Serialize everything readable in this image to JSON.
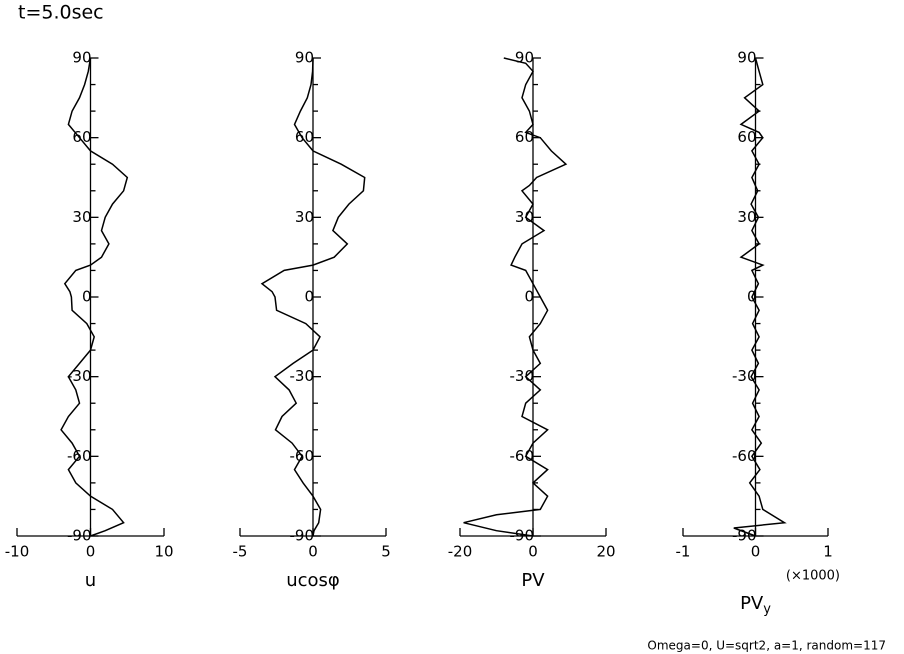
{
  "title": "t=5.0sec",
  "footer": "Omega=0, U=sqrt2, a=1, random=117",
  "chart_data": [
    {
      "type": "line",
      "xlabel": "u",
      "xlim": [
        -10,
        10
      ],
      "xticks": [
        -10,
        0,
        10
      ],
      "ylim": [
        -90,
        90
      ],
      "yticks": [
        90,
        60,
        30,
        0,
        -30,
        -60,
        -90
      ],
      "yminorticks": [
        80,
        70,
        50,
        40,
        20,
        10,
        -10,
        -20,
        -40,
        -50,
        -70,
        -80
      ],
      "color": "#000000",
      "y": [
        90,
        85,
        80,
        75,
        70,
        65,
        60,
        55,
        50,
        45,
        40,
        35,
        30,
        25,
        20,
        15,
        12,
        10,
        5,
        2,
        0,
        -5,
        -10,
        -15,
        -20,
        -25,
        -30,
        -35,
        -40,
        -45,
        -50,
        -55,
        -60,
        -65,
        -70,
        -75,
        -80,
        -85,
        -88,
        -90
      ],
      "values": [
        0,
        -0.3,
        -0.8,
        -1.5,
        -2.5,
        -3,
        -1.5,
        0,
        3,
        5,
        4.5,
        3,
        2,
        1.5,
        2.5,
        1.5,
        0,
        -2,
        -3.5,
        -2.8,
        -2.6,
        -2.5,
        -0.5,
        0.5,
        0,
        -1.5,
        -3,
        -2,
        -1.5,
        -3,
        -4,
        -2.5,
        -1.5,
        -3,
        -2,
        0,
        3,
        4.5,
        2,
        0
      ]
    },
    {
      "type": "line",
      "xlabel": "ucosφ",
      "xlim": [
        -5,
        5
      ],
      "xticks": [
        -5,
        0,
        5
      ],
      "ylim": [
        -90,
        90
      ],
      "yticks": [
        90,
        60,
        30,
        0,
        -30,
        -60,
        -90
      ],
      "yminorticks": [
        80,
        70,
        50,
        40,
        20,
        10,
        -10,
        -20,
        -40,
        -50,
        -70,
        -80
      ],
      "color": "#000000",
      "y": [
        90,
        85,
        80,
        75,
        70,
        65,
        60,
        55,
        50,
        45,
        40,
        35,
        30,
        25,
        20,
        15,
        12,
        10,
        5,
        2,
        0,
        -5,
        -10,
        -15,
        -20,
        -25,
        -30,
        -35,
        -40,
        -45,
        -50,
        -55,
        -60,
        -65,
        -70,
        -75,
        -80,
        -85,
        -88,
        -90
      ],
      "values": [
        0,
        -0.03,
        -0.14,
        -0.39,
        -0.86,
        -1.27,
        -0.75,
        0,
        1.93,
        3.54,
        3.45,
        2.46,
        1.73,
        1.36,
        2.35,
        1.45,
        0,
        -1.97,
        -3.49,
        -2.8,
        -2.6,
        -2.49,
        -0.49,
        0.48,
        0,
        -1.36,
        -2.6,
        -1.64,
        -1.15,
        -2.12,
        -2.57,
        -1.43,
        -0.75,
        -1.27,
        -0.68,
        0,
        0.52,
        0.39,
        0.07,
        0
      ]
    },
    {
      "type": "line",
      "xlabel": "PV",
      "xlim": [
        -20,
        20
      ],
      "xticks": [
        -20,
        0,
        20
      ],
      "ylim": [
        -90,
        90
      ],
      "yticks": [
        90,
        60,
        30,
        0,
        -30,
        -60,
        -90
      ],
      "yminorticks": [
        80,
        70,
        50,
        40,
        20,
        10,
        -10,
        -20,
        -40,
        -50,
        -70,
        -80
      ],
      "color": "#000000",
      "y": [
        90,
        88,
        85,
        80,
        75,
        70,
        65,
        62,
        60,
        55,
        50,
        45,
        42,
        40,
        35,
        30,
        25,
        20,
        15,
        12,
        10,
        5,
        0,
        -5,
        -10,
        -15,
        -20,
        -25,
        -30,
        -35,
        -40,
        -45,
        -50,
        -55,
        -60,
        -65,
        -70,
        -75,
        -80,
        -82,
        -85,
        -88,
        -90
      ],
      "values": [
        -8,
        -2,
        0,
        -2,
        -3,
        -1,
        0,
        -2,
        2,
        5,
        9,
        1,
        -1,
        -3,
        0,
        -2,
        3,
        -3,
        -5,
        -6,
        -2,
        0,
        2,
        4,
        2,
        -1,
        0,
        2,
        -2,
        2,
        -2,
        -3,
        4,
        0,
        -2,
        4,
        0,
        4,
        2,
        -10,
        -19,
        -10,
        0
      ]
    },
    {
      "type": "line",
      "xlabel": "PV",
      "xlabel_subscript": "y",
      "note": "(×1000)",
      "xlim": [
        -1,
        1
      ],
      "xticks": [
        -1,
        0,
        1
      ],
      "ylim": [
        -90,
        90
      ],
      "yticks": [
        90,
        60,
        30,
        0,
        -30,
        -60,
        -90
      ],
      "yminorticks": [
        80,
        70,
        50,
        40,
        20,
        10,
        -10,
        -20,
        -40,
        -50,
        -70,
        -80
      ],
      "color": "#000000",
      "y": [
        90,
        85,
        80,
        75,
        70,
        65,
        62,
        60,
        55,
        50,
        45,
        40,
        35,
        30,
        25,
        20,
        15,
        12,
        10,
        5,
        0,
        -5,
        -10,
        -15,
        -20,
        -25,
        -30,
        -35,
        -40,
        -45,
        -50,
        -55,
        -60,
        -65,
        -70,
        -75,
        -80,
        -85,
        -87,
        -90
      ],
      "values": [
        0,
        0.05,
        0.1,
        -0.15,
        0.05,
        -0.2,
        0.05,
        0.1,
        -0.05,
        0.05,
        -0.05,
        0.03,
        -0.06,
        0.04,
        -0.05,
        0.05,
        -0.2,
        0.1,
        -0.05,
        0.04,
        -0.05,
        0.05,
        -0.04,
        0.05,
        -0.05,
        0.04,
        -0.06,
        0.05,
        -0.04,
        0.05,
        -0.05,
        0.08,
        -0.05,
        0.06,
        -0.08,
        0.05,
        0.1,
        0.4,
        -0.3,
        0
      ]
    }
  ]
}
